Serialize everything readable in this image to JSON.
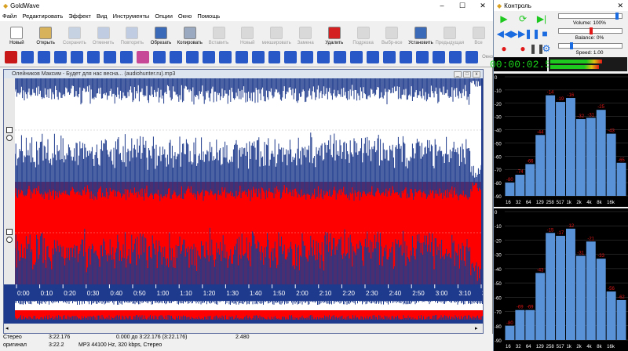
{
  "app": {
    "title": "GoldWave"
  },
  "menu": [
    "Файл",
    "Редактировать",
    "Эффект",
    "Вид",
    "Инструменты",
    "Опции",
    "Окно",
    "Помощь"
  ],
  "toolbar": [
    {
      "label": "Новый",
      "icon": "new-file-icon",
      "color": "#ffffff",
      "disabled": false
    },
    {
      "label": "Открыть",
      "icon": "open-folder-icon",
      "color": "#d8b25a",
      "disabled": false
    },
    {
      "label": "Сохранить",
      "icon": "save-icon",
      "color": "#7a9ac8",
      "disabled": true
    },
    {
      "label": "Отменить",
      "icon": "undo-icon",
      "color": "#6a8cc8",
      "disabled": true
    },
    {
      "label": "Повторить",
      "icon": "redo-icon",
      "color": "#6a8cc8",
      "disabled": true
    },
    {
      "label": "Обрезать",
      "icon": "scissors-icon",
      "color": "#3a6ab8",
      "disabled": false
    },
    {
      "label": "Копировать",
      "icon": "copy-icon",
      "color": "#9aa8c0",
      "disabled": false
    },
    {
      "label": "Вставить",
      "icon": "paste-icon",
      "color": "#b0b0b0",
      "disabled": true
    },
    {
      "label": "Новый",
      "icon": "paste-new-icon",
      "color": "#b0b0b0",
      "disabled": true
    },
    {
      "label": "микшировать",
      "icon": "mix-icon",
      "color": "#b0b0b0",
      "disabled": true
    },
    {
      "label": "Замена",
      "icon": "replace-icon",
      "color": "#b0b0b0",
      "disabled": true
    },
    {
      "label": "Удалить",
      "icon": "delete-x-icon",
      "color": "#d42020",
      "disabled": false
    },
    {
      "label": "Подрезка",
      "icon": "trim-icon",
      "color": "#b0b0b0",
      "disabled": true
    },
    {
      "label": "Выбр-все",
      "icon": "select-all-icon",
      "color": "#b0b0b0",
      "disabled": true
    },
    {
      "label": "Установить",
      "icon": "set-marker-icon",
      "color": "#3a6ab8",
      "disabled": false
    },
    {
      "label": "Предыдущая",
      "icon": "previous-icon",
      "color": "#b0b0b0",
      "disabled": true
    },
    {
      "label": "Все",
      "icon": "all-icon",
      "color": "#b0b0b0",
      "disabled": true
    }
  ],
  "effects": [
    {
      "icon": "record-icon",
      "color": "#c81818"
    },
    {
      "icon": "resize-arrows-icon",
      "color": "#2858c8"
    },
    {
      "icon": "globe-icon",
      "color": "#2858c8"
    },
    {
      "icon": "xy-icon",
      "color": "#2858c8"
    },
    {
      "icon": "arrow-right-icon",
      "color": "#2858c8"
    },
    {
      "icon": "arrow-down-icon",
      "color": "#2858c8"
    },
    {
      "icon": "undo-curve-icon",
      "color": "#2858c8"
    },
    {
      "icon": "compressor-icon",
      "color": "#2858c8"
    },
    {
      "icon": "colorwheel-icon",
      "color": "#c84898"
    },
    {
      "icon": "equalizer-icon",
      "color": "#2858c8"
    },
    {
      "icon": "stack-icon",
      "color": "#2858c8"
    },
    {
      "icon": "arrow-left-icon",
      "color": "#2858c8"
    },
    {
      "icon": "split-icon",
      "color": "#2858c8"
    },
    {
      "icon": "pan-icon",
      "color": "#2858c8"
    },
    {
      "icon": "mixer-icon",
      "color": "#2858c8"
    },
    {
      "icon": "arch-icon",
      "color": "#2858c8"
    },
    {
      "icon": "spectrum-icon",
      "color": "#2858c8"
    },
    {
      "icon": "cross-icon",
      "color": "#2858c8"
    },
    {
      "icon": "chart-icon",
      "color": "#2858c8"
    },
    {
      "icon": "expand-icon",
      "color": "#2858c8"
    },
    {
      "icon": "speaker-left-icon",
      "color": "#2858c8"
    },
    {
      "icon": "play-right-icon",
      "color": "#2858c8"
    },
    {
      "icon": "fade-in-icon",
      "color": "#2858c8"
    },
    {
      "icon": "fade-out-icon",
      "color": "#2858c8"
    },
    {
      "icon": "speaker-right-icon",
      "color": "#2858c8"
    },
    {
      "icon": "speaker-icon",
      "color": "#2858c8"
    },
    {
      "icon": "speaker-both-icon",
      "color": "#2858c8"
    },
    {
      "icon": "mute-speaker-icon",
      "color": "#2858c8"
    },
    {
      "icon": "echo-icon",
      "color": "#2858c8"
    }
  ],
  "effects_tail": "Окно",
  "document": {
    "title": "Олейников Максим - Будет для нас весна... (audiohunter.ru).mp3"
  },
  "ruler_labels": [
    "0:00",
    "0:10",
    "0:20",
    "0:30",
    "0:40",
    "0:50",
    "1:00",
    "1:10",
    "1:20",
    "1:30",
    "1:40",
    "1:50",
    "2:00",
    "2:10",
    "2:20",
    "2:30",
    "2:40",
    "2:50",
    "3:00",
    "3:10",
    "3:"
  ],
  "status": {
    "row1": [
      "Стерео",
      "3:22.176",
      "0.000 до 3:22.176 (3:22.176)",
      "2.480"
    ],
    "row2": [
      "оригинал",
      "3:22.2",
      "MP3 44100 Hz, 320 kbps, Стерео"
    ]
  },
  "control": {
    "title": "Контроль",
    "volume": "Volume: 100%",
    "balance": "Balance: 0%",
    "speed": "Speed: 1.00",
    "time": "00:00:02.5",
    "colors": {
      "green": "#1ec81e",
      "blue": "#1a6ae0",
      "red": "#e01818",
      "bars": "#5a92d8"
    }
  },
  "spectrum": {
    "ylabels": [
      "0",
      "-10",
      "-20",
      "-30",
      "-40",
      "-50",
      "-60",
      "-70",
      "-80",
      "-90"
    ],
    "xlabels": [
      "16",
      "32",
      "64",
      "129",
      "258",
      "517",
      "1k",
      "2k",
      "4k",
      "8k",
      "16k"
    ],
    "ch1": [
      -80,
      -74,
      -66,
      -44,
      -14,
      -19,
      -16,
      -32,
      -31,
      -25,
      -43,
      -65
    ],
    "ch2": [
      -80,
      -69,
      -69,
      -43,
      -15,
      -17,
      -12,
      -31,
      -21,
      -33,
      -56,
      -62
    ]
  }
}
